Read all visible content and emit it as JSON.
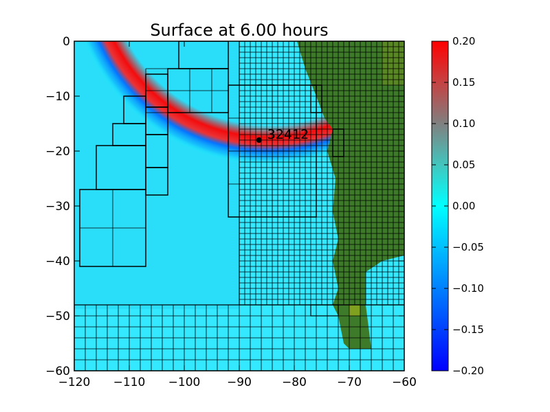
{
  "chart_data": {
    "type": "heatmap",
    "title": "Surface at 6.00 hours",
    "xlim": [
      -120,
      -60
    ],
    "ylim": [
      -60,
      0
    ],
    "xticks": [
      -120,
      -110,
      -100,
      -90,
      -80,
      -70,
      -60
    ],
    "yticks": [
      0,
      -10,
      -20,
      -30,
      -40,
      -50,
      -60
    ],
    "xtick_labels": [
      "−120",
      "−110",
      "−100",
      "−90",
      "−80",
      "−70",
      "−60"
    ],
    "ytick_labels": [
      "0",
      "−10",
      "−20",
      "−30",
      "−40",
      "−50",
      "−60"
    ],
    "colorbar": {
      "range": [
        -0.2,
        0.2
      ],
      "ticks": [
        0.2,
        0.15,
        0.1,
        0.05,
        0.0,
        -0.05,
        -0.1,
        -0.15,
        -0.2
      ],
      "tick_labels": [
        "0.20",
        "0.15",
        "0.10",
        "0.05",
        "0.00",
        "−0.05",
        "−0.10",
        "−0.15",
        "−0.20"
      ],
      "colors": [
        "#0000ff",
        "#00ffff",
        "#ff0000"
      ]
    },
    "land_color": "#3d7a2a",
    "water_background": "#33e8ff",
    "gauge": {
      "label": "32412",
      "x": -86.4,
      "y": -18.0
    },
    "amr_patches": [
      {
        "level": 1,
        "x0": -120,
        "x1": -60,
        "y0": -60,
        "y1": -48
      },
      {
        "level": 2,
        "x0": -90,
        "x1": -60,
        "y0": -48,
        "y1": 0
      },
      {
        "level": 2,
        "x0": -77,
        "x1": -72,
        "y0": -50,
        "y1": -48
      },
      {
        "level": 3,
        "x0": -119,
        "x1": -107,
        "y0": -41,
        "y1": -27
      },
      {
        "level": 3,
        "x0": -116,
        "x1": -107,
        "y0": -27,
        "y1": -19
      },
      {
        "level": 3,
        "x0": -113,
        "x1": -107,
        "y0": -19,
        "y1": -15
      },
      {
        "level": 3,
        "x0": -111,
        "x1": -107,
        "y0": -15,
        "y1": -10
      },
      {
        "level": 3,
        "x0": -107,
        "x1": -103,
        "y0": -28,
        "y1": -23
      },
      {
        "level": 3,
        "x0": -107,
        "x1": -103,
        "y0": -23,
        "y1": -17
      },
      {
        "level": 3,
        "x0": -107,
        "x1": -103,
        "y0": -17,
        "y1": -12
      },
      {
        "level": 3,
        "x0": -107,
        "x1": -103,
        "y0": -12,
        "y1": -6
      },
      {
        "level": 3,
        "x0": -103,
        "x1": -92,
        "y0": -13,
        "y1": -5
      },
      {
        "level": 3,
        "x0": -101,
        "x1": -92,
        "y0": -5,
        "y1": 0
      },
      {
        "level": 3,
        "x0": -92,
        "x1": -76,
        "y0": -32,
        "y1": -8
      },
      {
        "level": 3,
        "x0": -77,
        "x1": -75,
        "y0": -13,
        "y1": -8
      },
      {
        "level": 3,
        "x0": -73,
        "x1": -71,
        "y0": -21,
        "y1": -16
      }
    ],
    "subgrid": [
      {
        "x0": -90,
        "x1": -60,
        "y0": -48,
        "y1": 0,
        "dx": 1,
        "dy": 1
      },
      {
        "x0": -120,
        "x1": -60,
        "y0": -60,
        "y1": -48,
        "dx": 2,
        "dy": 2
      },
      {
        "x0": -119,
        "x1": -107,
        "y0": -41,
        "y1": -27,
        "dx": 6,
        "dy": 7
      },
      {
        "x0": -107,
        "x1": -92,
        "y0": -13,
        "y1": -5,
        "dx": 4,
        "dy": 4
      },
      {
        "x0": -92,
        "x1": -76,
        "y0": -32,
        "y1": -8,
        "dx": 8,
        "dy": 6
      }
    ]
  }
}
